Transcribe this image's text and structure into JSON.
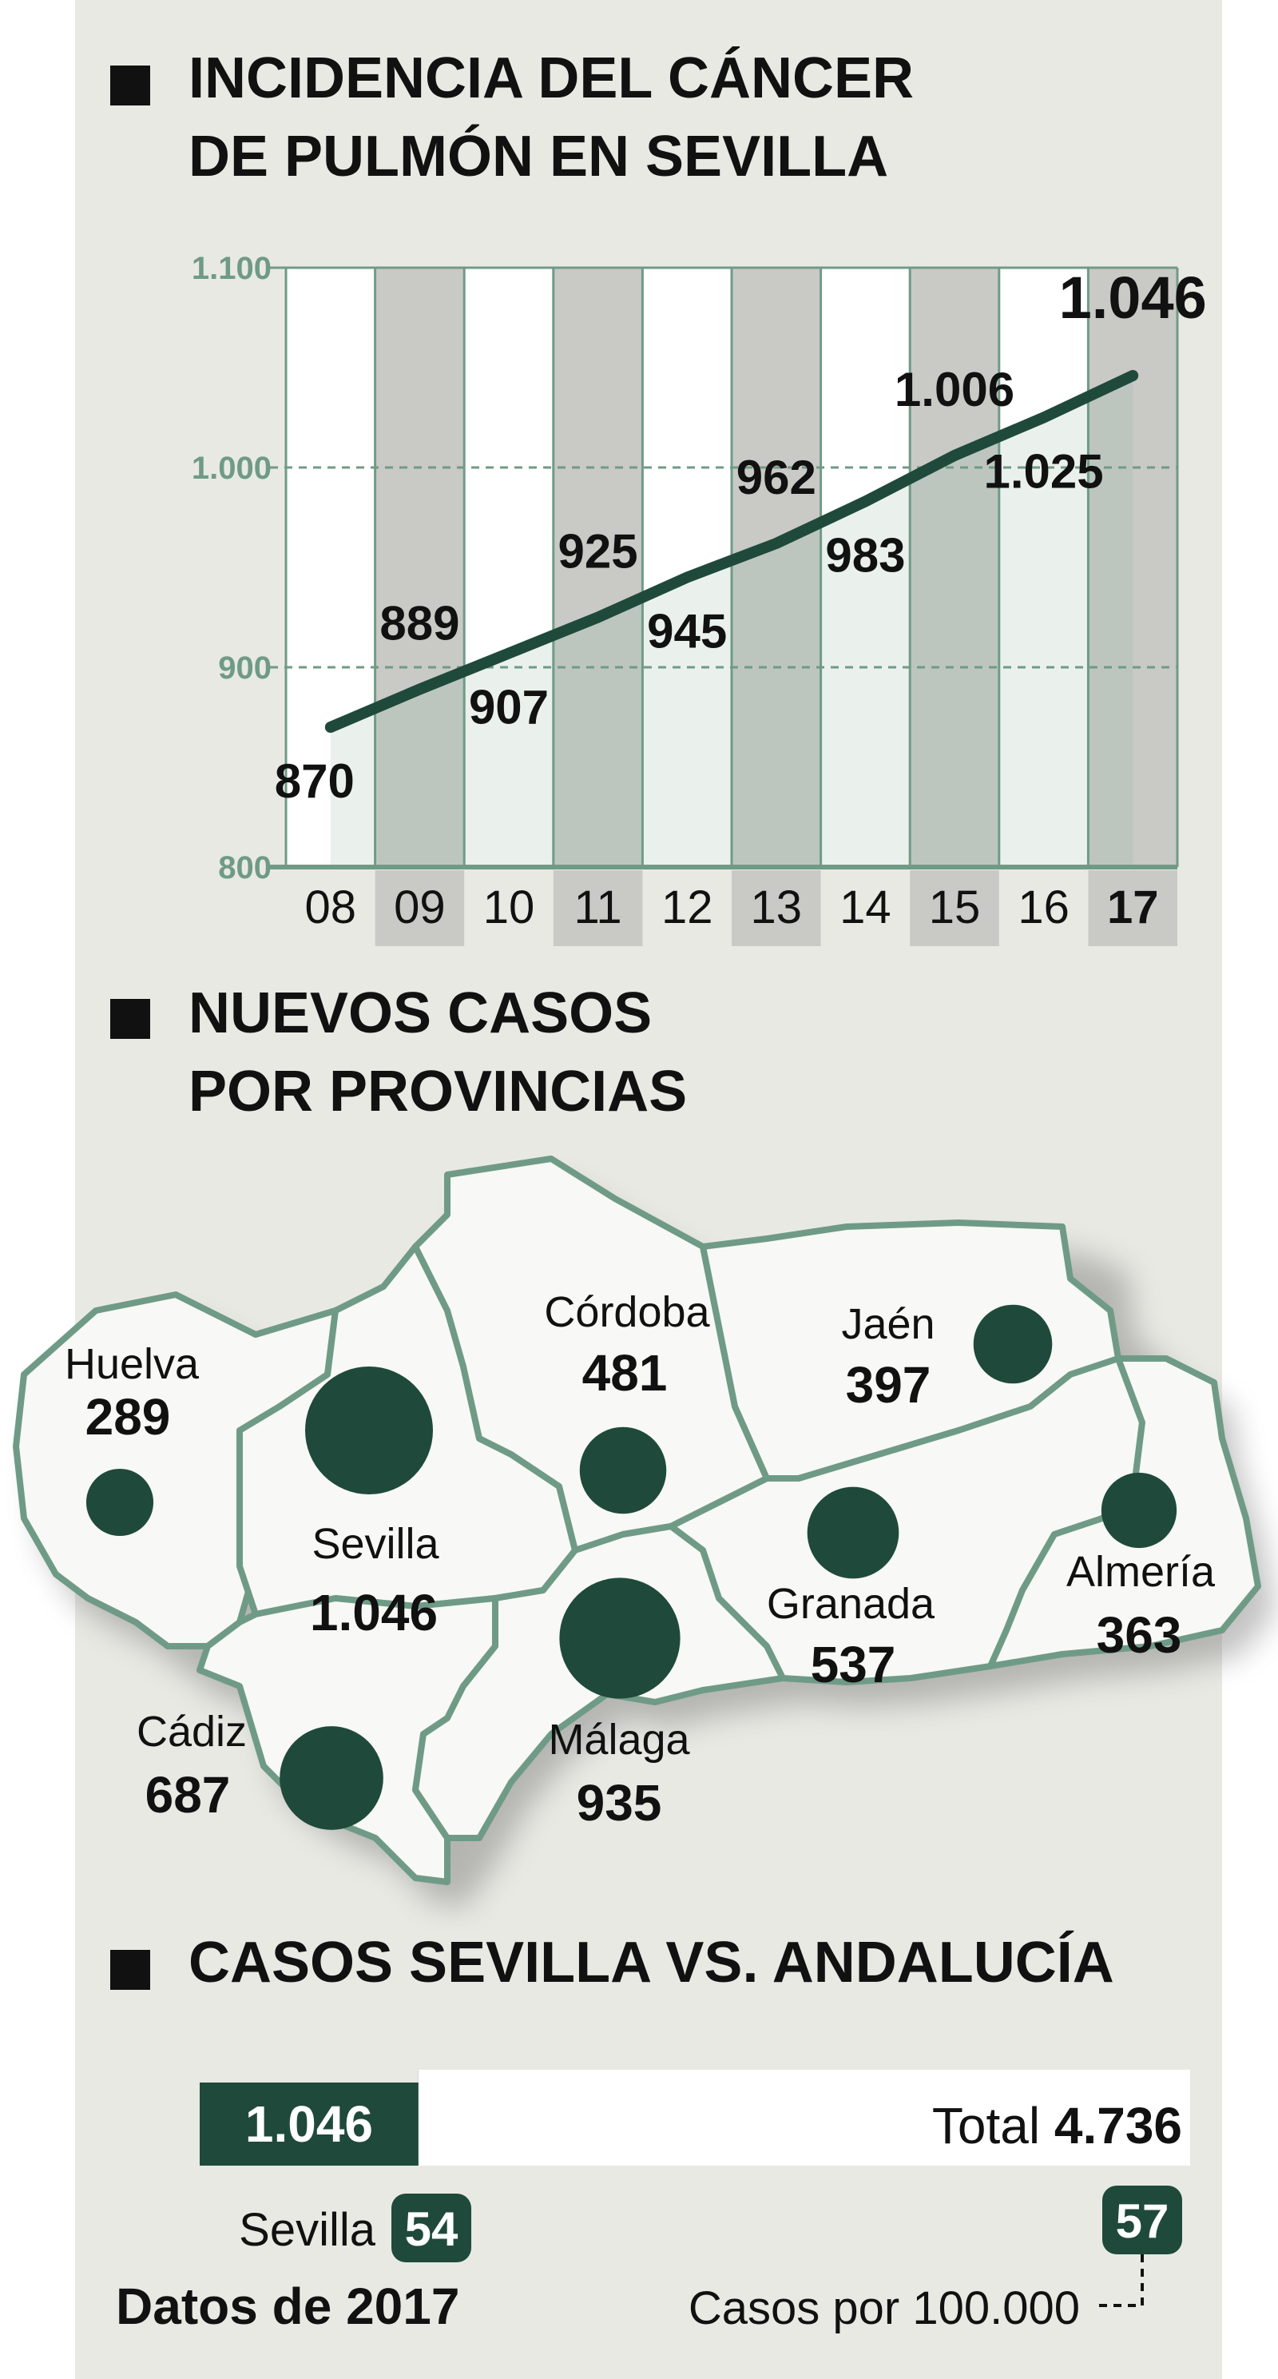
{
  "colors": {
    "background": "#e9e9e4",
    "dark_green": "#1f4a3b",
    "light_green": "#d9e6df",
    "stripe_gray": "#c9c9c6",
    "stripe_light": "#ffffff",
    "axis_green": "#6f9b86",
    "text": "#111111"
  },
  "sections": {
    "incidence_title_1": "INCIDENCIA DEL CÁNCER",
    "incidence_title_2": "DE PULMÓN EN SEVILLA",
    "provinces_title_1": "NUEVOS CASOS",
    "provinces_title_2": "POR PROVINCIAS",
    "comparison_title": "CASOS SEVILLA VS. ANDALUCÍA"
  },
  "chart_data": [
    {
      "type": "line",
      "title": "INCIDENCIA DEL CÁNCER DE PULMÓN EN SEVILLA",
      "categories": [
        "08",
        "09",
        "10",
        "11",
        "12",
        "13",
        "14",
        "15",
        "16",
        "17"
      ],
      "series": [
        {
          "values": [
            870,
            889,
            907,
            925,
            945,
            962,
            983,
            1006,
            1025,
            1046
          ],
          "value_labels": [
            "870",
            "889",
            "907",
            "925",
            "945",
            "962",
            "983",
            "1.006",
            "1.025",
            "1.046"
          ]
        }
      ],
      "ylim": [
        800,
        1100
      ],
      "yticks": [
        800,
        900,
        1000,
        1100
      ],
      "ytick_labels": [
        "800",
        "900",
        "1.000",
        "1.100"
      ],
      "highlight_category": "17",
      "grid": "dashed at 900 and 1.000"
    },
    {
      "type": "bar",
      "title": "CASOS SEVILLA VS. ANDALUCÍA",
      "sevilla_value": 1046,
      "sevilla_label": "1.046",
      "total_value": 4736,
      "total_prefix": "Total",
      "total_label": "4.736",
      "sevilla_rate_label": "Sevilla",
      "sevilla_rate": "54",
      "andalucia_rate": "57",
      "rate_caption": "Casos por 100.000",
      "footer": "Datos de 2017"
    }
  ],
  "map": {
    "provinces": [
      {
        "name": "Huelva",
        "value": "289",
        "cases": 289
      },
      {
        "name": "Sevilla",
        "value": "1.046",
        "cases": 1046
      },
      {
        "name": "Córdoba",
        "value": "481",
        "cases": 481
      },
      {
        "name": "Jaén",
        "value": "397",
        "cases": 397
      },
      {
        "name": "Granada",
        "value": "537",
        "cases": 537
      },
      {
        "name": "Almería",
        "value": "363",
        "cases": 363
      },
      {
        "name": "Cádiz",
        "value": "687",
        "cases": 687
      },
      {
        "name": "Málaga",
        "value": "935",
        "cases": 935
      }
    ]
  }
}
